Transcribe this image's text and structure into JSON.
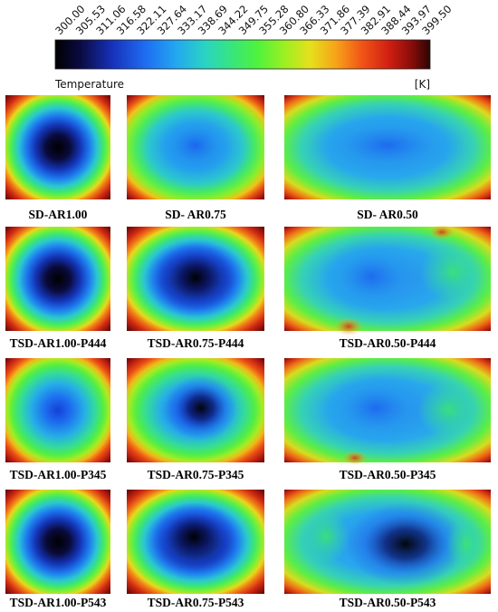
{
  "colorbar": {
    "ticks": [
      "300.00",
      "305.53",
      "311.06",
      "316.58",
      "322.11",
      "327.64",
      "333.17",
      "338.69",
      "344.22",
      "349.75",
      "355.28",
      "360.80",
      "366.33",
      "371.86",
      "377.39",
      "382.91",
      "388.44",
      "393.97",
      "399.50"
    ],
    "title": "Temperature",
    "unit": "[K]",
    "colors": [
      "#000000",
      "#0b0b45",
      "#1630b8",
      "#1e6cf2",
      "#22a6f0",
      "#2ad4c4",
      "#37e57e",
      "#4ff23c",
      "#9af022",
      "#e6e01c",
      "#f7a219",
      "#f05316",
      "#d01f12",
      "#8a0d0a",
      "#2a0503"
    ]
  },
  "panels": [
    {
      "caption": "SD-AR1.00"
    },
    {
      "caption": "SD- AR0.75"
    },
    {
      "caption": "SD- AR0.50"
    },
    {
      "caption": "TSD-AR1.00-P444"
    },
    {
      "caption": "TSD-AR0.75-P444"
    },
    {
      "caption": "TSD-AR0.50-P444"
    },
    {
      "caption": "TSD-AR1.00-P345"
    },
    {
      "caption": "TSD-AR0.75-P345"
    },
    {
      "caption": "TSD-AR0.50-P345"
    },
    {
      "caption": "TSD-AR1.00-P543"
    },
    {
      "caption": "TSD-AR0.75-P543"
    },
    {
      "caption": "TSD-AR0.50-P543"
    }
  ]
}
